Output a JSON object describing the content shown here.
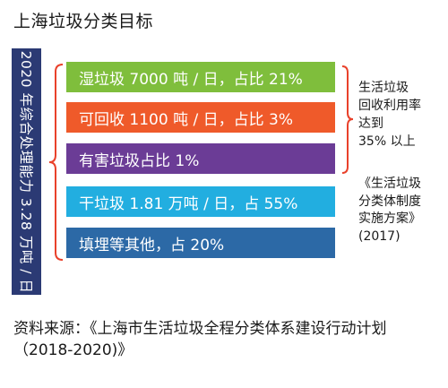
{
  "title": "上海垃圾分类目标",
  "side_label": "2020 年综合处理能力 3.28 万吨 / 日",
  "bars": {
    "wet": "湿垃圾 7000 吨 / 日，占比 21%",
    "recyclable": "可回收 1100 吨 / 日，占比 3%",
    "hazardous": "有害垃圾占比 1%",
    "dry": "干垃圾 1.81 万吨 / 日，占 55%",
    "landfill": "填埋等其他，占 20%"
  },
  "colors": {
    "side_label": "#2b3a74",
    "wet": "#7fbe3c",
    "recyclable": "#ef5a2a",
    "hazardous": "#6b3c96",
    "dry": "#22aee0",
    "landfill": "#2c69a6",
    "bracket": "#e9412b"
  },
  "notes": {
    "recycling_rate": "生活垃圾\n回收利用率\n达到\n35% 以上",
    "plan": "《生活垃圾\n分类体制度\n实施方案》\n(2017)"
  },
  "source": "资料来源：《上海市生活垃圾全程分类体系建设行动计划（2018-2020)》"
}
